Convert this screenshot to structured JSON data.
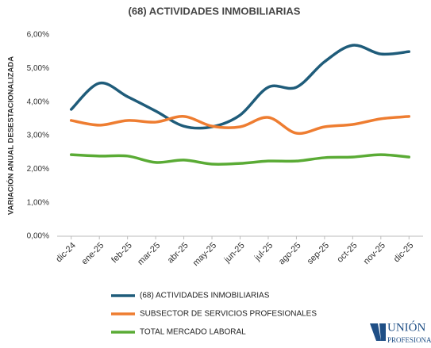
{
  "chart_data": {
    "type": "line",
    "title": "(68) ACTIVIDADES INMOBILIARIAS",
    "y_label": "VARIACIÓN ANUAL DESESTACIONALIZADA",
    "categories": [
      "dic-24",
      "ene-25",
      "feb-25",
      "mar-25",
      "abr-25",
      "may-25",
      "jun-25",
      "jul-25",
      "ago-25",
      "sep-25",
      "oct-25",
      "nov-25",
      "dic-25"
    ],
    "series": [
      {
        "name": "(68) ACTIVIDADES INMOBILIARIAS",
        "color": "#1f5c7a",
        "values": [
          3.78,
          4.56,
          4.16,
          3.73,
          3.28,
          3.26,
          3.61,
          4.44,
          4.44,
          5.2,
          5.69,
          5.43,
          5.5
        ]
      },
      {
        "name": "SUBSECTOR DE SERVICIOS PROFESIONALES",
        "color": "#ee7d31",
        "values": [
          3.45,
          3.31,
          3.45,
          3.4,
          3.57,
          3.28,
          3.26,
          3.54,
          3.07,
          3.26,
          3.33,
          3.5,
          3.57
        ]
      },
      {
        "name": "TOTAL MERCADO LABORAL",
        "color": "#5aab35",
        "values": [
          2.43,
          2.39,
          2.39,
          2.2,
          2.27,
          2.15,
          2.17,
          2.24,
          2.24,
          2.34,
          2.36,
          2.43,
          2.36
        ]
      }
    ],
    "ylim": [
      0,
      6
    ],
    "yticks": [
      {
        "value": 0,
        "label": "0,00%"
      },
      {
        "value": 1,
        "label": "1,00%"
      },
      {
        "value": 2,
        "label": "2,00%"
      },
      {
        "value": 3,
        "label": "3,00%"
      },
      {
        "value": 4,
        "label": "4,00%"
      },
      {
        "value": 5,
        "label": "5,00%"
      },
      {
        "value": 6,
        "label": "6,00%"
      }
    ],
    "grid": false,
    "legend": "bottom"
  },
  "logo": {
    "line1": "UNIÓN",
    "line2": "PROFESIONAL"
  }
}
